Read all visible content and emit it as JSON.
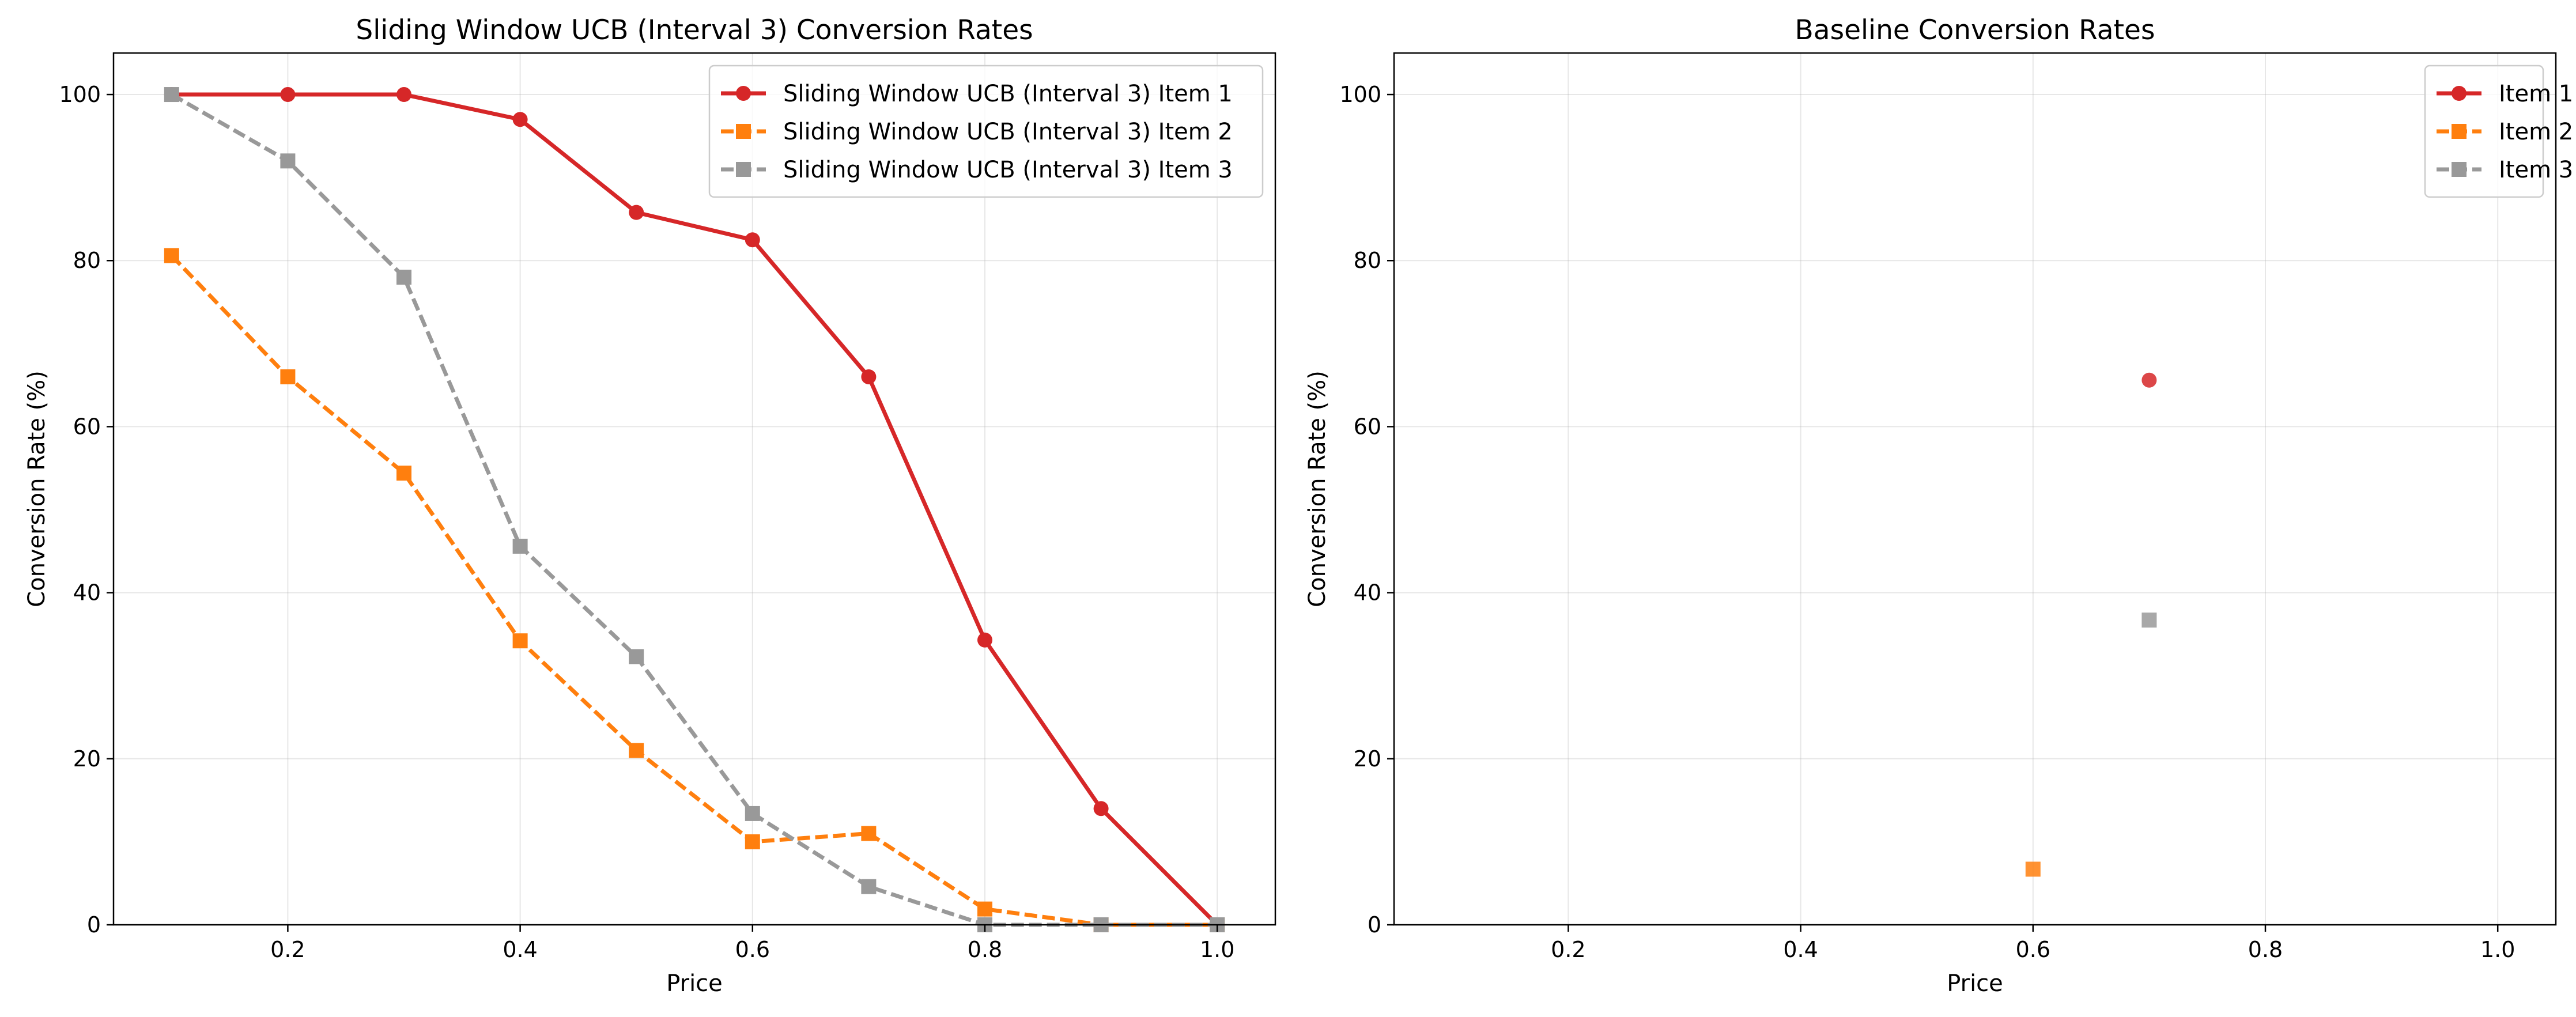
{
  "chart_data": [
    {
      "type": "line",
      "title": "Sliding Window UCB (Interval 3) Conversion Rates",
      "xlabel": "Price",
      "ylabel": "Conversion Rate (%)",
      "xlim": [
        0.05,
        1.05
      ],
      "ylim": [
        0,
        105
      ],
      "xticks": [
        0.2,
        0.4,
        0.6,
        0.8,
        1.0
      ],
      "xtick_labels": [
        "0.2",
        "0.4",
        "0.6",
        "0.8",
        "1.0"
      ],
      "yticks": [
        0,
        20,
        40,
        60,
        80,
        100
      ],
      "ytick_labels": [
        "0",
        "20",
        "40",
        "60",
        "80",
        "100"
      ],
      "grid": true,
      "legend_position": "top-right",
      "series": [
        {
          "name": "Sliding Window UCB (Interval 3) Item 1",
          "color": "#d62728",
          "marker": "circle",
          "line": "solid",
          "x": [
            0.1,
            0.2,
            0.3,
            0.4,
            0.5,
            0.6,
            0.7,
            0.8,
            0.9,
            1.0
          ],
          "y": [
            100,
            100,
            100,
            97,
            85.8,
            82.5,
            66,
            34.3,
            14,
            0
          ]
        },
        {
          "name": "Sliding Window UCB (Interval 3) Item 2",
          "color": "#ff7f0e",
          "marker": "square",
          "line": "dashed",
          "x": [
            0.1,
            0.2,
            0.3,
            0.4,
            0.5,
            0.6,
            0.7,
            0.8,
            0.9,
            1.0
          ],
          "y": [
            80.6,
            66,
            54.4,
            34.2,
            21,
            10,
            11,
            1.9,
            0,
            0
          ]
        },
        {
          "name": "Sliding Window UCB (Interval 3) Item 3",
          "color": "#999999",
          "marker": "square",
          "line": "dashed",
          "x": [
            0.1,
            0.2,
            0.3,
            0.4,
            0.5,
            0.6,
            0.7,
            0.8,
            0.9,
            1.0
          ],
          "y": [
            100,
            92,
            78,
            45.6,
            32.3,
            13.4,
            4.6,
            0,
            0,
            0
          ]
        }
      ]
    },
    {
      "type": "scatter",
      "title": "Baseline Conversion Rates",
      "xlabel": "Price",
      "ylabel": "Conversion Rate (%)",
      "xlim": [
        0.05,
        1.05
      ],
      "ylim": [
        0,
        105
      ],
      "xticks": [
        0.2,
        0.4,
        0.6,
        0.8,
        1.0
      ],
      "xtick_labels": [
        "0.2",
        "0.4",
        "0.6",
        "0.8",
        "1.0"
      ],
      "yticks": [
        0,
        20,
        40,
        60,
        80,
        100
      ],
      "ytick_labels": [
        "0",
        "20",
        "40",
        "60",
        "80",
        "100"
      ],
      "grid": true,
      "legend_position": "top-right",
      "series": [
        {
          "name": "Item 1",
          "color": "#d62728",
          "marker": "circle",
          "line": "solid",
          "x": [
            0.7
          ],
          "y": [
            65.6
          ]
        },
        {
          "name": "Item 2",
          "color": "#ff7f0e",
          "marker": "square",
          "line": "dashed",
          "x": [
            0.6
          ],
          "y": [
            6.7
          ]
        },
        {
          "name": "Item 3",
          "color": "#999999",
          "marker": "square",
          "line": "dashed",
          "x": [
            0.7
          ],
          "y": [
            36.7
          ]
        }
      ]
    }
  ]
}
